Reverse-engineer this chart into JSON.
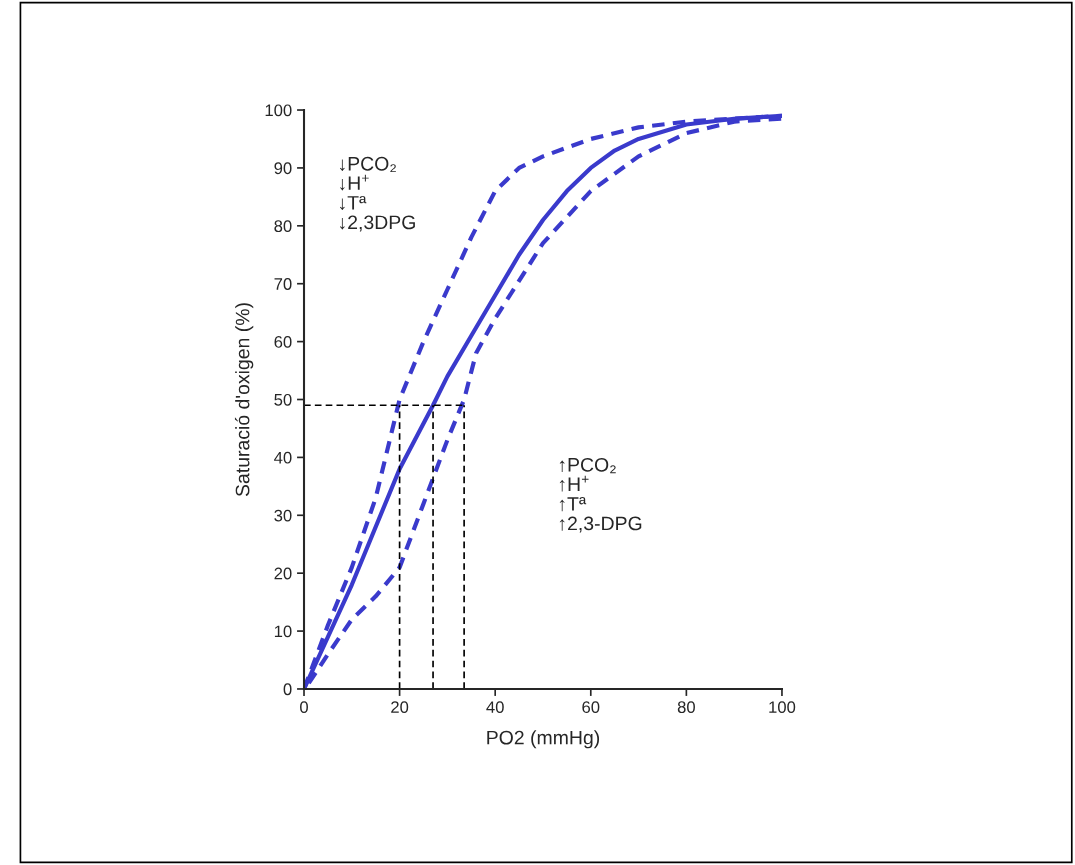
{
  "chart_data": {
    "type": "line",
    "xlabel": "PO2 (mmHg)",
    "ylabel": "Saturació d'oxigen (%)",
    "xlim": [
      0,
      100
    ],
    "ylim": [
      0,
      100
    ],
    "xticks": [
      0,
      20,
      40,
      60,
      80,
      100
    ],
    "yticks": [
      0,
      10,
      20,
      30,
      40,
      50,
      60,
      70,
      80,
      90,
      100
    ],
    "grid": false,
    "legend": false,
    "marker": "none",
    "annotations": [
      "↓PCO₂\n↓H$^{+}$\n↓Tª\n↓2,3DPG",
      "↑PCO₂\n↑H$^{+}$\n↑Tª\n↑2,3-DPG"
    ],
    "series": [
      {
        "color": "#3a3acc",
        "line_style": "solid",
        "x": [
          0,
          10,
          20,
          27,
          30,
          35,
          40,
          45,
          50,
          55,
          60,
          65,
          70,
          80,
          90,
          100
        ],
        "values": [
          0,
          18,
          38,
          49,
          54,
          61,
          68,
          75,
          81,
          86,
          90,
          93,
          95,
          97.5,
          98.5,
          99
        ]
      },
      {
        "color": "#3a3acc",
        "line_style": "dashed",
        "x": [
          0,
          5,
          10,
          15,
          20,
          25,
          30,
          35,
          40,
          45,
          50,
          60,
          70,
          80,
          90,
          100
        ],
        "values": [
          0,
          11,
          21,
          33,
          50,
          60,
          69,
          78,
          86,
          90,
          92,
          95,
          97,
          98,
          98.5,
          99
        ]
      },
      {
        "color": "#3a3acc",
        "line_style": "dashed",
        "x": [
          1,
          5,
          10,
          15,
          20,
          25,
          30,
          33.5,
          36,
          40,
          50,
          60,
          70,
          80,
          90,
          100
        ],
        "values": [
          1,
          6,
          12,
          16,
          21,
          32,
          43,
          50,
          58,
          64,
          77,
          86,
          92,
          96,
          98,
          98.5
        ]
      },
      {
        "color": "#000000",
        "line_style": "dotted",
        "x": [
          0,
          33.5
        ],
        "values": [
          49,
          49
        ]
      },
      {
        "color": "#000000",
        "line_style": "dotted",
        "x": [
          20,
          20
        ],
        "values": [
          0,
          49
        ]
      },
      {
        "color": "#000000",
        "line_style": "dotted",
        "x": [
          27,
          27
        ],
        "values": [
          0,
          49
        ]
      },
      {
        "color": "#000000",
        "line_style": "dotted",
        "x": [
          33.5,
          33.5
        ],
        "values": [
          0,
          49
        ]
      }
    ]
  }
}
